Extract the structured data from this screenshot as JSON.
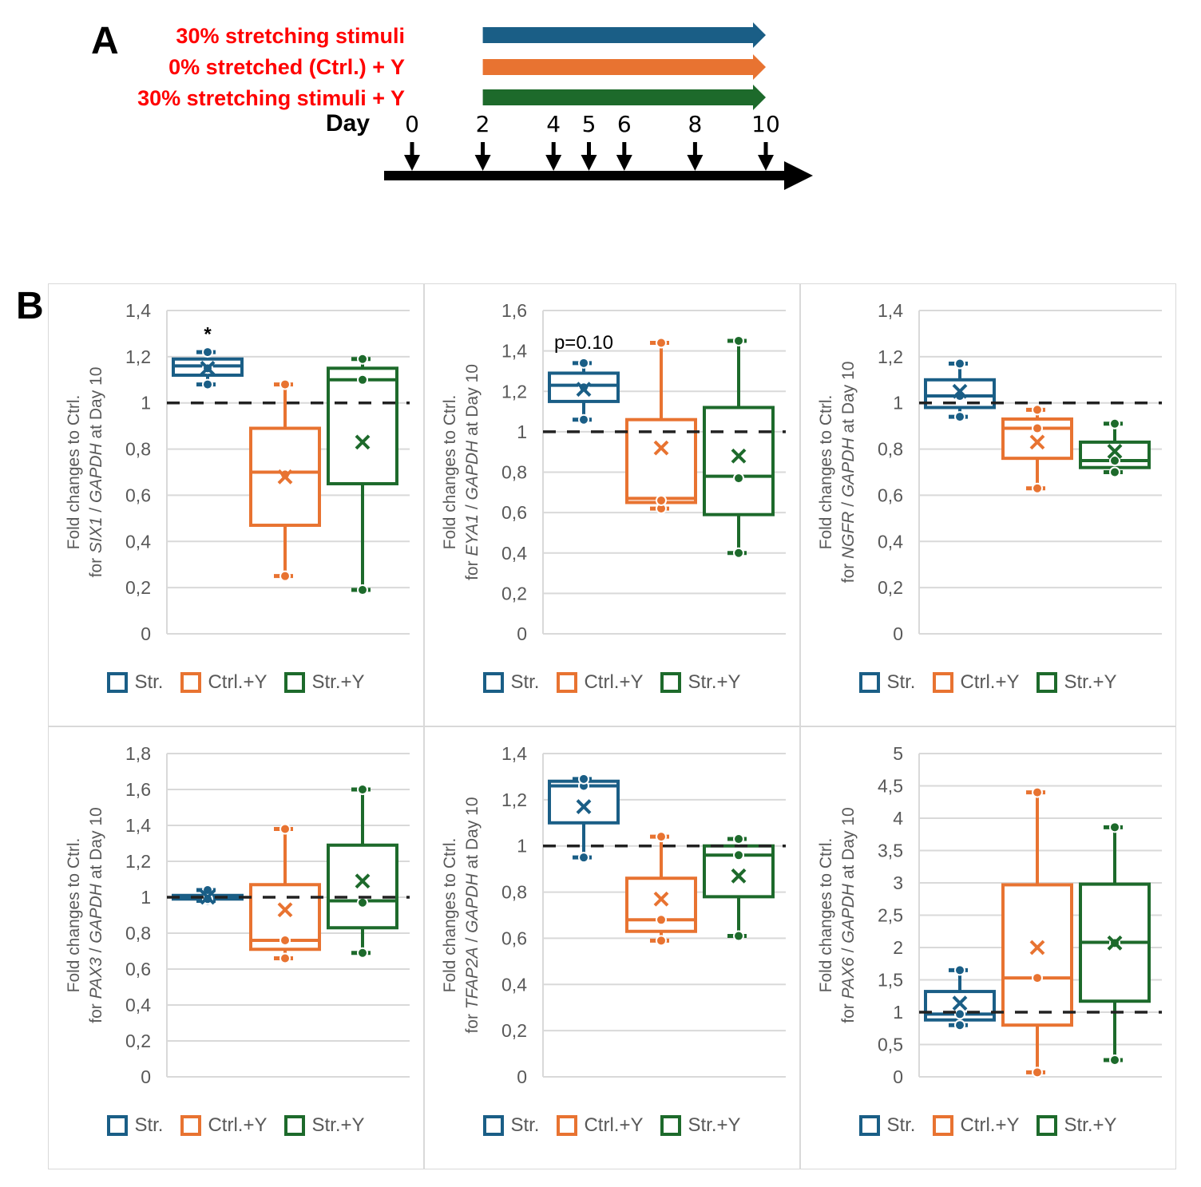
{
  "panel_a": {
    "letter": "A",
    "conditions": [
      {
        "label": "30% stretching stimuli",
        "color": "#1a5e86"
      },
      {
        "label": "0% stretched (Ctrl.) + Y",
        "color": "#e87331"
      },
      {
        "label": "30% stretching stimuli + Y",
        "color": "#1d6a2b"
      }
    ],
    "day_label": "Day",
    "days": [
      "0",
      "2",
      "4",
      "5",
      "6",
      "8",
      "10"
    ],
    "treatment_start_day": 2,
    "treatment_end_day": 10
  },
  "panel_b": {
    "letter": "B"
  },
  "legend": [
    {
      "label": "Str.",
      "color": "#1a5e86"
    },
    {
      "label": "Ctrl.+Y",
      "color": "#e87331"
    },
    {
      "label": "Str.+Y",
      "color": "#1d6a2b"
    }
  ],
  "chart_data": [
    {
      "type": "box",
      "gene": "SIX1",
      "ylabel_line1": "Fold changes to Ctrl.",
      "ylabel_line2_prefix": "for ",
      "ylabel_line2_gene": "SIX1",
      "ylabel_line2_mid": " / ",
      "ylabel_line2_ref": "GAPDH",
      "ylabel_line2_suffix": " at Day 10",
      "ylim": [
        0,
        1.4
      ],
      "yticks": [
        0,
        0.2,
        0.4,
        0.6,
        0.8,
        1,
        1.2,
        1.4
      ],
      "ytick_labels": [
        "0",
        "0,2",
        "0,4",
        "0,6",
        "0,8",
        "1",
        "1,2",
        "1,4"
      ],
      "reference_line": 1,
      "annotation": {
        "text": "*",
        "group": 0,
        "y": 1.27
      },
      "groups": [
        {
          "name": "Str.",
          "min": 1.08,
          "q1": 1.12,
          "median": 1.16,
          "q3": 1.19,
          "max": 1.22,
          "mean": 1.15,
          "points": [
            1.08,
            1.15,
            1.22
          ]
        },
        {
          "name": "Ctrl.+Y",
          "min": 0.25,
          "q1": 0.47,
          "median": 0.7,
          "q3": 0.89,
          "max": 1.08,
          "mean": 0.68,
          "points": [
            0.25,
            0.69,
            1.08
          ]
        },
        {
          "name": "Str.+Y",
          "min": 0.19,
          "q1": 0.65,
          "median": 1.1,
          "q3": 1.15,
          "max": 1.19,
          "mean": 0.83,
          "points": [
            0.19,
            1.1,
            1.19
          ]
        }
      ]
    },
    {
      "type": "box",
      "gene": "EYA1",
      "ylabel_line1": "Fold changes to Ctrl.",
      "ylabel_line2_prefix": "for ",
      "ylabel_line2_gene": "EYA1",
      "ylabel_line2_mid": " / ",
      "ylabel_line2_ref": "GAPDH",
      "ylabel_line2_suffix": " at Day 10",
      "ylim": [
        0,
        1.6
      ],
      "yticks": [
        0,
        0.2,
        0.4,
        0.6,
        0.8,
        1,
        1.2,
        1.4,
        1.6
      ],
      "ytick_labels": [
        "0",
        "0,2",
        "0,4",
        "0,6",
        "0,8",
        "1",
        "1,2",
        "1,4",
        "1,6"
      ],
      "reference_line": 1,
      "annotation": {
        "text": "p=0.10",
        "group": 0,
        "y": 1.41
      },
      "groups": [
        {
          "name": "Str.",
          "min": 1.06,
          "q1": 1.15,
          "median": 1.23,
          "q3": 1.29,
          "max": 1.34,
          "mean": 1.21,
          "points": [
            1.06,
            1.22,
            1.34
          ]
        },
        {
          "name": "Ctrl.+Y",
          "min": 0.62,
          "q1": 0.65,
          "median": 0.67,
          "q3": 1.06,
          "max": 1.44,
          "mean": 0.92,
          "points": [
            0.62,
            0.66,
            1.44
          ]
        },
        {
          "name": "Str.+Y",
          "min": 0.4,
          "q1": 0.59,
          "median": 0.78,
          "q3": 1.12,
          "max": 1.45,
          "mean": 0.88,
          "points": [
            0.4,
            0.77,
            1.45
          ]
        }
      ]
    },
    {
      "type": "box",
      "gene": "NGFR",
      "ylabel_line1": "Fold changes to Ctrl.",
      "ylabel_line2_prefix": "for ",
      "ylabel_line2_gene": "NGFR",
      "ylabel_line2_mid": " / ",
      "ylabel_line2_ref": "GAPDH",
      "ylabel_line2_suffix": " at Day 10",
      "ylim": [
        0,
        1.4
      ],
      "yticks": [
        0,
        0.2,
        0.4,
        0.6,
        0.8,
        1,
        1.2,
        1.4
      ],
      "ytick_labels": [
        "0",
        "0,2",
        "0,4",
        "0,6",
        "0,8",
        "1",
        "1,2",
        "1,4"
      ],
      "reference_line": 1,
      "annotation": null,
      "groups": [
        {
          "name": "Str.",
          "min": 0.94,
          "q1": 0.98,
          "median": 1.03,
          "q3": 1.1,
          "max": 1.17,
          "mean": 1.05,
          "points": [
            0.94,
            1.03,
            1.17
          ]
        },
        {
          "name": "Ctrl.+Y",
          "min": 0.63,
          "q1": 0.76,
          "median": 0.89,
          "q3": 0.93,
          "max": 0.97,
          "mean": 0.83,
          "points": [
            0.63,
            0.89,
            0.97
          ]
        },
        {
          "name": "Str.+Y",
          "min": 0.7,
          "q1": 0.72,
          "median": 0.75,
          "q3": 0.83,
          "max": 0.91,
          "mean": 0.79,
          "points": [
            0.7,
            0.75,
            0.91
          ]
        }
      ]
    },
    {
      "type": "box",
      "gene": "PAX3",
      "ylabel_line1": "Fold changes to Ctrl.",
      "ylabel_line2_prefix": "for ",
      "ylabel_line2_gene": "PAX3",
      "ylabel_line2_mid": " / ",
      "ylabel_line2_ref": "GAPDH",
      "ylabel_line2_suffix": " at Day 10",
      "ylim": [
        0,
        1.8
      ],
      "yticks": [
        0,
        0.2,
        0.4,
        0.6,
        0.8,
        1,
        1.2,
        1.4,
        1.6,
        1.8
      ],
      "ytick_labels": [
        "0",
        "0,2",
        "0,4",
        "0,6",
        "0,8",
        "1",
        "1,2",
        "1,4",
        "1,6",
        "1,8"
      ],
      "reference_line": 1,
      "annotation": null,
      "groups": [
        {
          "name": "Str.",
          "min": 0.98,
          "q1": 0.99,
          "median": 1.0,
          "q3": 1.01,
          "max": 1.04,
          "mean": 1.0,
          "points": [
            0.98,
            0.99,
            1.04
          ]
        },
        {
          "name": "Ctrl.+Y",
          "min": 0.66,
          "q1": 0.71,
          "median": 0.76,
          "q3": 1.07,
          "max": 1.38,
          "mean": 0.93,
          "points": [
            0.66,
            0.76,
            1.38
          ]
        },
        {
          "name": "Str.+Y",
          "min": 0.69,
          "q1": 0.83,
          "median": 0.98,
          "q3": 1.29,
          "max": 1.6,
          "mean": 1.09,
          "points": [
            0.69,
            0.97,
            1.6
          ]
        }
      ]
    },
    {
      "type": "box",
      "gene": "TFAP2A",
      "ylabel_line1": "Fold changes to Ctrl.",
      "ylabel_line2_prefix": "for ",
      "ylabel_line2_gene": "TFAP2A",
      "ylabel_line2_mid": " / ",
      "ylabel_line2_ref": "GAPDH",
      "ylabel_line2_suffix": " at Day 10",
      "ylim": [
        0,
        1.4
      ],
      "yticks": [
        0,
        0.2,
        0.4,
        0.6,
        0.8,
        1,
        1.2,
        1.4
      ],
      "ytick_labels": [
        "0",
        "0,2",
        "0,4",
        "0,6",
        "0,8",
        "1",
        "1,2",
        "1,4"
      ],
      "reference_line": 1,
      "annotation": null,
      "groups": [
        {
          "name": "Str.",
          "min": 0.95,
          "q1": 1.1,
          "median": 1.26,
          "q3": 1.28,
          "max": 1.29,
          "mean": 1.17,
          "points": [
            0.95,
            1.26,
            1.29
          ]
        },
        {
          "name": "Ctrl.+Y",
          "min": 0.59,
          "q1": 0.63,
          "median": 0.68,
          "q3": 0.86,
          "max": 1.04,
          "mean": 0.77,
          "points": [
            0.59,
            0.68,
            1.04
          ]
        },
        {
          "name": "Str.+Y",
          "min": 0.61,
          "q1": 0.78,
          "median": 0.96,
          "q3": 1.0,
          "max": 1.03,
          "mean": 0.87,
          "points": [
            0.61,
            0.96,
            1.03
          ]
        }
      ]
    },
    {
      "type": "box",
      "gene": "PAX6",
      "ylabel_line1": "Fold changes to Ctrl.",
      "ylabel_line2_prefix": "for ",
      "ylabel_line2_gene": "PAX6",
      "ylabel_line2_mid": " / ",
      "ylabel_line2_ref": "GAPDH",
      "ylabel_line2_suffix": " at Day 10",
      "ylim": [
        0,
        5
      ],
      "yticks": [
        0,
        0.5,
        1,
        1.5,
        2,
        2.5,
        3,
        3.5,
        4,
        4.5,
        5
      ],
      "ytick_labels": [
        "0",
        "0,5",
        "1",
        "1,5",
        "2",
        "2,5",
        "3",
        "3,5",
        "4",
        "4,5",
        "5"
      ],
      "reference_line": 1,
      "annotation": null,
      "groups": [
        {
          "name": "Str.",
          "min": 0.8,
          "q1": 0.88,
          "median": 0.97,
          "q3": 1.32,
          "max": 1.65,
          "mean": 1.14,
          "points": [
            0.8,
            0.97,
            1.65
          ]
        },
        {
          "name": "Ctrl.+Y",
          "min": 0.07,
          "q1": 0.8,
          "median": 1.53,
          "q3": 2.97,
          "max": 4.4,
          "mean": 2.0,
          "points": [
            0.07,
            1.53,
            4.4
          ]
        },
        {
          "name": "Str.+Y",
          "min": 0.26,
          "q1": 1.17,
          "median": 2.08,
          "q3": 2.98,
          "max": 3.86,
          "mean": 2.07,
          "points": [
            0.26,
            2.07,
            3.86
          ]
        }
      ]
    }
  ]
}
